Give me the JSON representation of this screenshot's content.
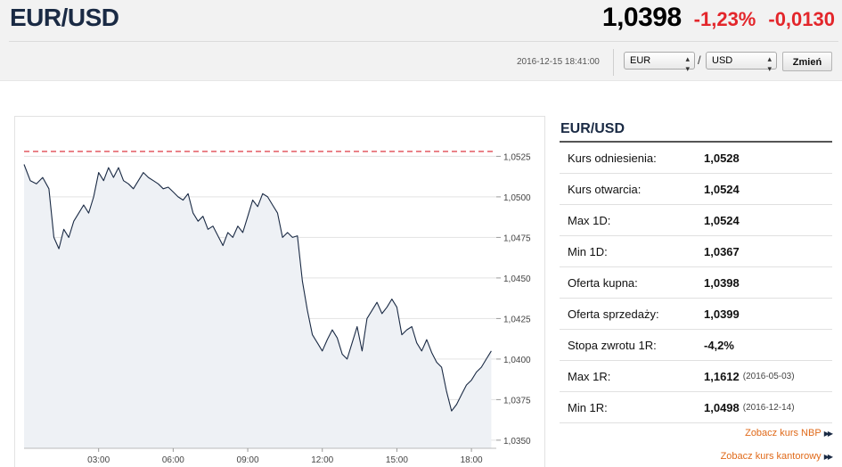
{
  "header": {
    "pair": "EUR/USD",
    "price": "1,0398",
    "change_pct": "-1,23%",
    "change_abs": "-0,0130",
    "timestamp": "2016-12-15 18:41:00",
    "from_currency": "EUR",
    "to_currency": "USD",
    "slash": "/",
    "change_button": "Zmień"
  },
  "side": {
    "title": "EUR/USD",
    "rows": [
      {
        "label": "Kurs odniesienia:",
        "value": "1,0528",
        "note": ""
      },
      {
        "label": "Kurs otwarcia:",
        "value": "1,0524",
        "note": ""
      },
      {
        "label": "Max 1D:",
        "value": "1,0524",
        "note": ""
      },
      {
        "label": "Min 1D:",
        "value": "1,0367",
        "note": ""
      },
      {
        "label": "Oferta kupna:",
        "value": "1,0398",
        "note": ""
      },
      {
        "label": "Oferta sprzedaży:",
        "value": "1,0399",
        "note": ""
      },
      {
        "label": "Stopa zwrotu 1R:",
        "value": "-4,2%",
        "note": ""
      },
      {
        "label": "Max 1R:",
        "value": "1,1612",
        "note": "(2016-05-03)"
      },
      {
        "label": "Min 1R:",
        "value": "1,0498",
        "note": "(2016-12-14)"
      }
    ],
    "link_nbp": "Zobacz kurs NBP",
    "link_kantor": "Zobacz kurs kantorowy"
  },
  "colors": {
    "line": "#1a2a44",
    "fill": "#eef1f5",
    "reference": "#d9232d",
    "negative": "#e3262b",
    "link": "#e06a1a"
  },
  "chart_data": {
    "type": "line",
    "reference_value": 1.0528,
    "ylim": [
      1.0345,
      1.0545
    ],
    "xlim": [
      0.0,
      19.0
    ],
    "y_ticks": [
      1.0525,
      1.05,
      1.0475,
      1.045,
      1.0425,
      1.04,
      1.0375,
      1.035
    ],
    "y_tick_labels": [
      "1,0525",
      "1,0500",
      "1,0475",
      "1,0450",
      "1,0425",
      "1,0400",
      "1,0375",
      "1,0350"
    ],
    "x_ticks": [
      3,
      6,
      9,
      12,
      15,
      18
    ],
    "x_tick_labels": [
      "03:00",
      "06:00",
      "09:00",
      "12:00",
      "15:00",
      "18:00"
    ],
    "series": [
      {
        "x": [
          0.0,
          0.25,
          0.5,
          0.75,
          1.0,
          1.2,
          1.4,
          1.6,
          1.8,
          2.0,
          2.2,
          2.4,
          2.6,
          2.8,
          3.0,
          3.2,
          3.4,
          3.6,
          3.8,
          4.0,
          4.2,
          4.4,
          4.6,
          4.8,
          5.0,
          5.2,
          5.4,
          5.6,
          5.8,
          6.0,
          6.2,
          6.4,
          6.6,
          6.8,
          7.0,
          7.2,
          7.4,
          7.6,
          7.8,
          8.0,
          8.2,
          8.4,
          8.6,
          8.8,
          9.0,
          9.2,
          9.4,
          9.6,
          9.8,
          10.0,
          10.2,
          10.4,
          10.6,
          10.8,
          11.0,
          11.2,
          11.4,
          11.6,
          11.8,
          12.0,
          12.2,
          12.4,
          12.6,
          12.8,
          13.0,
          13.2,
          13.4,
          13.6,
          13.8,
          14.0,
          14.2,
          14.4,
          14.6,
          14.8,
          15.0,
          15.2,
          15.4,
          15.6,
          15.8,
          16.0,
          16.2,
          16.4,
          16.6,
          16.8,
          17.0,
          17.2,
          17.4,
          17.6,
          17.8,
          18.0,
          18.2,
          18.4,
          18.6,
          18.8
        ],
        "y": [
          1.052,
          1.051,
          1.0508,
          1.0512,
          1.0505,
          1.0475,
          1.0468,
          1.048,
          1.0475,
          1.0485,
          1.049,
          1.0495,
          1.049,
          1.05,
          1.0515,
          1.051,
          1.0518,
          1.0512,
          1.0518,
          1.051,
          1.0508,
          1.0505,
          1.051,
          1.0515,
          1.0512,
          1.051,
          1.0508,
          1.0505,
          1.0506,
          1.0503,
          1.05,
          1.0498,
          1.0502,
          1.049,
          1.0485,
          1.0488,
          1.048,
          1.0482,
          1.0476,
          1.047,
          1.0478,
          1.0475,
          1.0482,
          1.0478,
          1.0488,
          1.0498,
          1.0494,
          1.0502,
          1.05,
          1.0495,
          1.049,
          1.0475,
          1.0478,
          1.0475,
          1.0476,
          1.0448,
          1.043,
          1.0415,
          1.041,
          1.0405,
          1.0412,
          1.0418,
          1.0413,
          1.0403,
          1.04,
          1.041,
          1.042,
          1.0405,
          1.0425,
          1.043,
          1.0435,
          1.0428,
          1.0432,
          1.0437,
          1.0432,
          1.0415,
          1.0418,
          1.042,
          1.041,
          1.0405,
          1.0412,
          1.0404,
          1.0398,
          1.0395,
          1.038,
          1.0368,
          1.0372,
          1.0378,
          1.0384,
          1.0387,
          1.0392,
          1.0395,
          1.04,
          1.0405
        ]
      }
    ],
    "grid": true
  }
}
